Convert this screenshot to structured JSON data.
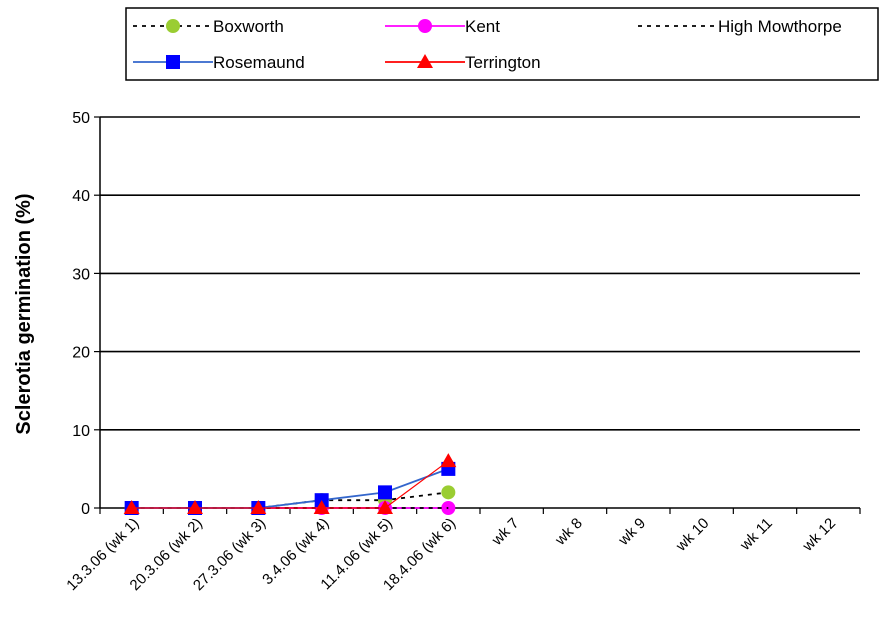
{
  "chart_data": {
    "type": "line",
    "title": "",
    "xlabel": "",
    "ylabel": "Sclerotia germination (%)",
    "ylim": [
      0,
      50
    ],
    "yticks": [
      0,
      10,
      20,
      30,
      40,
      50
    ],
    "grid": "horizontal",
    "legend_position": "top",
    "categories": [
      "13.3.06 (wk 1)",
      "20.3.06 (wk 2)",
      "27.3.06 (wk 3)",
      "3.4.06 (wk 4)",
      "11.4.06 (wk 5)",
      "18.4.06 (wk 6)",
      "wk 7",
      "wk 8",
      "wk 9",
      "wk 10",
      "wk 11",
      "wk 12"
    ],
    "series": [
      {
        "name": "Boxworth",
        "values": [
          0,
          0,
          0,
          1,
          1,
          2,
          null,
          null,
          null,
          null,
          null,
          null
        ],
        "color": "#000000",
        "dash": "dashed",
        "marker": "circle",
        "marker_color": "#9acd32"
      },
      {
        "name": "Kent",
        "values": [
          0,
          0,
          0,
          0,
          0,
          0,
          null,
          null,
          null,
          null,
          null,
          null
        ],
        "color": "#ff00ff",
        "dash": "solid",
        "marker": "circle",
        "marker_color": "#ff00ff"
      },
      {
        "name": "High Mowthorpe",
        "values": [
          0,
          0,
          0,
          0,
          0,
          0,
          null,
          null,
          null,
          null,
          null,
          null
        ],
        "color": "#000000",
        "dash": "dashed",
        "marker": "none",
        "marker_color": "#000000"
      },
      {
        "name": "Rosemaund",
        "values": [
          0,
          0,
          0,
          1,
          2,
          5,
          null,
          null,
          null,
          null,
          null,
          null
        ],
        "color": "#3366cc",
        "dash": "solid",
        "marker": "square",
        "marker_color": "#0000ff"
      },
      {
        "name": "Terrington",
        "values": [
          0,
          0,
          0,
          0,
          0,
          6,
          null,
          null,
          null,
          null,
          null,
          null
        ],
        "color": "#ff0000",
        "dash": "solid",
        "marker": "triangle",
        "marker_color": "#ff0000"
      }
    ]
  }
}
